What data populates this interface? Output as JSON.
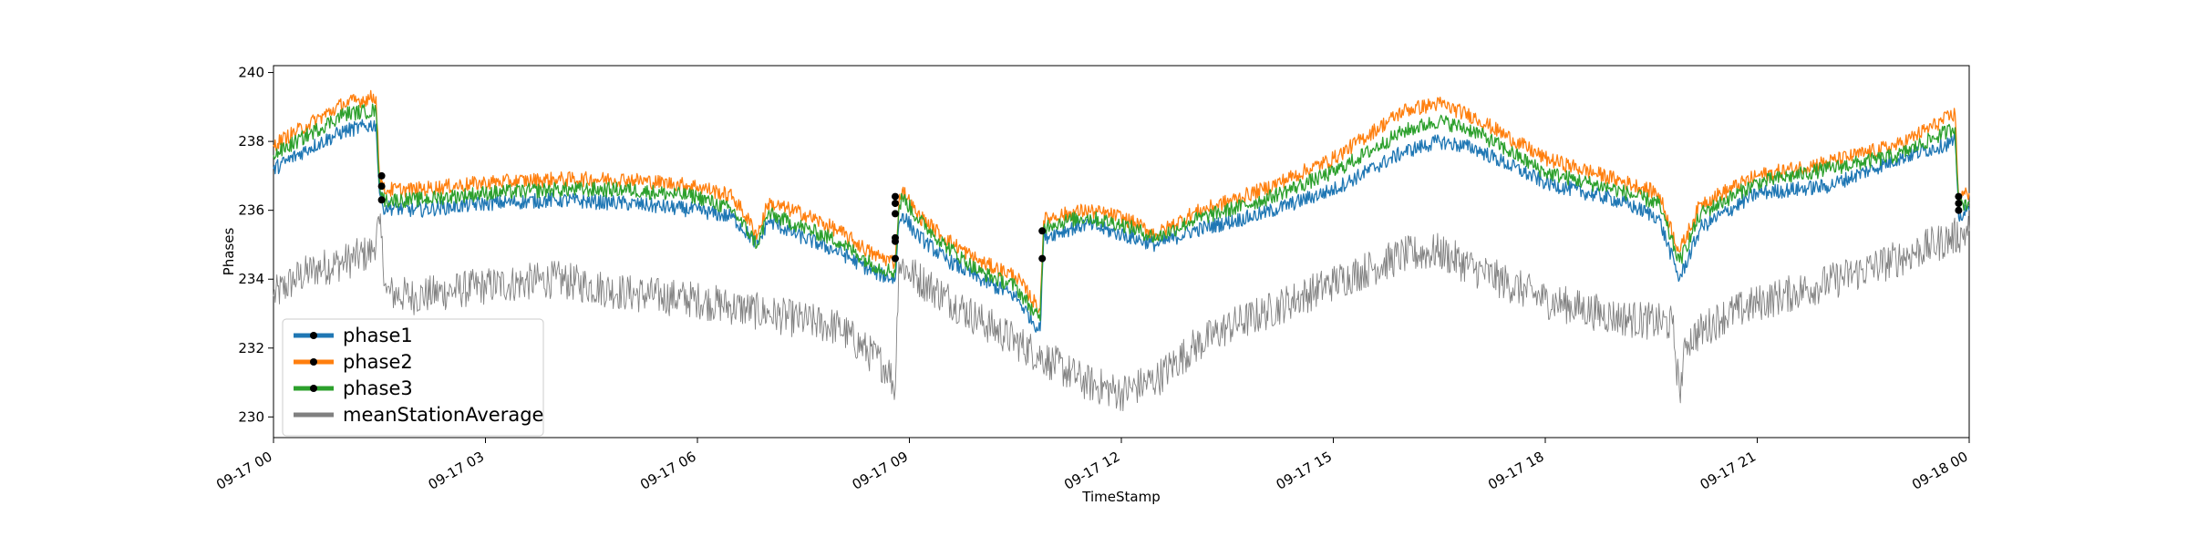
{
  "chart_data": {
    "type": "line",
    "xlabel": "TimeStamp",
    "ylabel": "Phases",
    "xlim": [
      "09-17 00:00",
      "09-18 00:00"
    ],
    "ylim": [
      229.4,
      240.2
    ],
    "x_tick_labels": [
      "09-17 00",
      "09-17 03",
      "09-17 06",
      "09-17 09",
      "09-17 12",
      "09-17 15",
      "09-17 18",
      "09-17 21",
      "09-18 00"
    ],
    "x_tick_hours": [
      0,
      3,
      6,
      9,
      12,
      15,
      18,
      21,
      24
    ],
    "y_ticks": [
      230,
      232,
      234,
      236,
      238,
      240
    ],
    "grid": false,
    "legend_position": "lower-left",
    "series": [
      {
        "name": "phase1",
        "color": "#1f77b4",
        "hours": [
          0,
          0.5,
          1.0,
          1.45,
          1.5,
          1.55,
          2,
          3,
          4,
          5,
          6,
          6.5,
          6.85,
          7.0,
          7.5,
          8,
          8.5,
          8.8,
          8.85,
          8.9,
          9.1,
          9.5,
          10,
          10.5,
          10.85,
          10.9,
          11.0,
          11.5,
          12,
          12.5,
          13,
          14,
          15,
          16,
          16.5,
          17,
          18,
          19,
          19.6,
          19.9,
          20.2,
          21,
          22,
          23,
          23.8,
          23.85,
          24
        ],
        "values": [
          237.2,
          237.8,
          238.3,
          238.5,
          236.5,
          236.1,
          236.0,
          236.2,
          236.3,
          236.2,
          236.0,
          235.8,
          235.0,
          235.7,
          235.2,
          234.8,
          234.2,
          234.0,
          235.6,
          235.9,
          235.3,
          234.6,
          234.0,
          233.5,
          232.5,
          235.2,
          235.3,
          235.6,
          235.3,
          235.0,
          235.4,
          235.9,
          236.6,
          237.7,
          238.0,
          237.8,
          236.8,
          236.3,
          235.8,
          234.0,
          235.5,
          236.5,
          236.7,
          237.5,
          238.0,
          235.8,
          236.0
        ]
      },
      {
        "name": "phase2",
        "color": "#ff7f0e",
        "hours": [
          0,
          0.5,
          1.0,
          1.45,
          1.5,
          1.55,
          2,
          3,
          4,
          5,
          6,
          6.5,
          6.85,
          7.0,
          7.5,
          8,
          8.5,
          8.8,
          8.85,
          8.9,
          9.1,
          9.5,
          10,
          10.5,
          10.85,
          10.9,
          11.0,
          11.5,
          12,
          12.5,
          13,
          14,
          15,
          16,
          16.5,
          17,
          18,
          19,
          19.6,
          19.9,
          20.2,
          21,
          22,
          23,
          23.8,
          23.85,
          24
        ],
        "values": [
          237.9,
          238.5,
          239.1,
          239.3,
          237.0,
          236.6,
          236.6,
          236.8,
          236.9,
          236.9,
          236.7,
          236.4,
          235.3,
          236.2,
          235.9,
          235.4,
          234.7,
          234.5,
          236.2,
          236.6,
          235.9,
          235.2,
          234.5,
          234.1,
          233.1,
          235.7,
          235.8,
          236.0,
          235.8,
          235.3,
          235.9,
          236.6,
          237.5,
          238.9,
          239.1,
          238.7,
          237.5,
          236.9,
          236.5,
          234.8,
          236.2,
          237.0,
          237.4,
          237.9,
          238.8,
          236.4,
          236.5
        ]
      },
      {
        "name": "phase3",
        "color": "#2ca02c",
        "hours": [
          0,
          0.5,
          1.0,
          1.45,
          1.5,
          1.55,
          2,
          3,
          4,
          5,
          6,
          6.5,
          6.85,
          7.0,
          7.5,
          8,
          8.5,
          8.8,
          8.85,
          8.9,
          9.1,
          9.5,
          10,
          10.5,
          10.85,
          10.9,
          11.0,
          11.5,
          12,
          12.5,
          13,
          14,
          15,
          16,
          16.5,
          17,
          18,
          19,
          19.6,
          19.9,
          20.2,
          21,
          22,
          23,
          23.8,
          23.85,
          24
        ],
        "values": [
          237.6,
          238.2,
          238.8,
          238.9,
          236.8,
          236.3,
          236.3,
          236.5,
          236.6,
          236.6,
          236.4,
          236.0,
          235.0,
          235.9,
          235.5,
          235.1,
          234.4,
          234.2,
          236.0,
          236.4,
          235.8,
          235.0,
          234.2,
          233.8,
          232.8,
          235.5,
          235.6,
          235.8,
          235.6,
          235.2,
          235.7,
          236.3,
          237.1,
          238.3,
          238.6,
          238.3,
          237.1,
          236.6,
          236.2,
          234.5,
          235.9,
          236.8,
          237.2,
          237.6,
          238.4,
          236.2,
          236.2
        ]
      },
      {
        "name": "meanStationAverage",
        "color": "#808080",
        "hours": [
          0,
          0.3,
          0.6,
          1.0,
          1.4,
          1.5,
          1.6,
          2,
          3,
          4,
          5,
          6,
          7,
          8,
          8.7,
          8.8,
          8.85,
          9.0,
          9.5,
          10,
          10.5,
          11,
          11.5,
          12,
          12.5,
          13,
          13.5,
          14,
          15,
          16,
          16.5,
          17,
          18,
          19,
          19.8,
          19.9,
          20.0,
          20.5,
          21,
          22,
          23,
          24
        ],
        "values": [
          233.5,
          234.0,
          234.3,
          234.5,
          234.8,
          235.6,
          233.6,
          233.5,
          233.8,
          234.0,
          233.6,
          233.4,
          233.0,
          232.6,
          231.4,
          230.8,
          234.5,
          234.2,
          233.5,
          232.8,
          232.2,
          231.6,
          231.0,
          230.7,
          231.1,
          232.0,
          232.6,
          233.0,
          233.9,
          234.7,
          234.8,
          234.3,
          233.4,
          232.9,
          232.7,
          230.7,
          232.2,
          232.9,
          233.3,
          233.9,
          234.6,
          235.4
        ]
      }
    ],
    "markers": {
      "color": "#000000",
      "points": [
        {
          "hour": 1.53,
          "value": 237.0
        },
        {
          "hour": 1.53,
          "value": 236.7
        },
        {
          "hour": 1.53,
          "value": 236.3
        },
        {
          "hour": 8.8,
          "value": 236.4
        },
        {
          "hour": 8.8,
          "value": 236.2
        },
        {
          "hour": 8.8,
          "value": 235.9
        },
        {
          "hour": 8.8,
          "value": 235.2
        },
        {
          "hour": 8.8,
          "value": 235.1
        },
        {
          "hour": 8.8,
          "value": 234.6
        },
        {
          "hour": 10.88,
          "value": 235.4
        },
        {
          "hour": 10.88,
          "value": 234.6
        },
        {
          "hour": 23.85,
          "value": 236.4
        },
        {
          "hour": 23.85,
          "value": 236.2
        },
        {
          "hour": 23.85,
          "value": 236.0
        }
      ]
    }
  }
}
